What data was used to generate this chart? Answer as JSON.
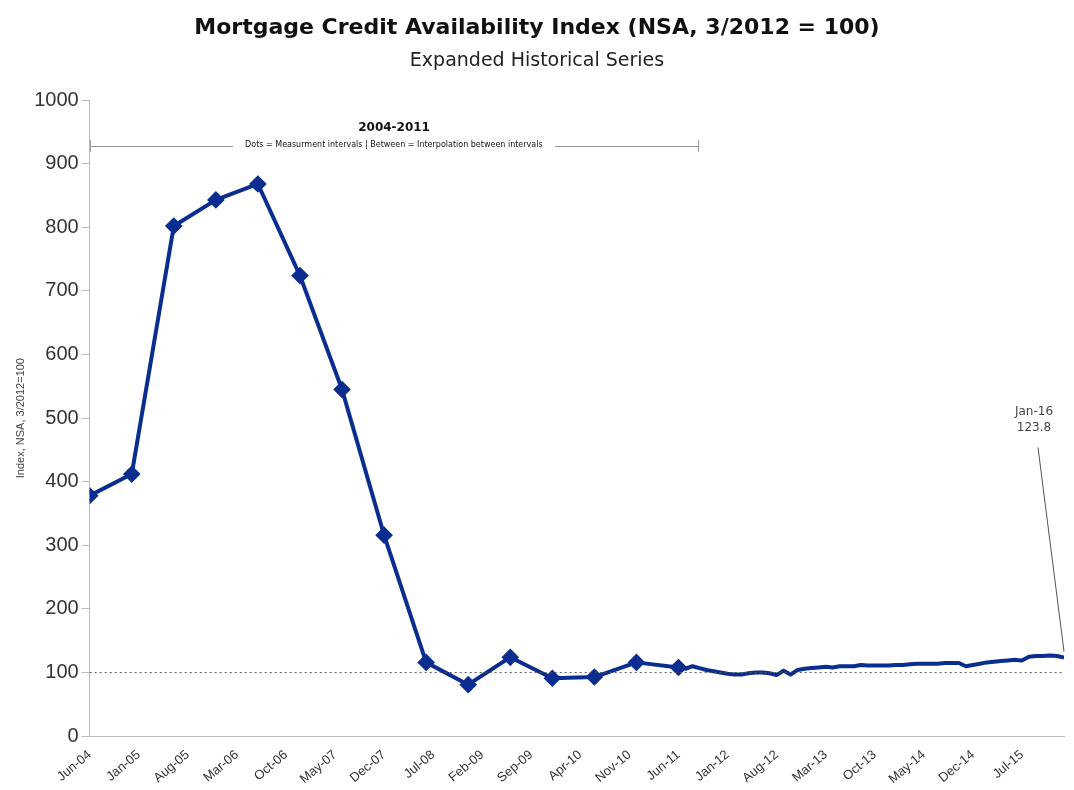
{
  "chart_data": {
    "type": "line",
    "title": "Mortgage Credit Availability Index (NSA, 3/2012 = 100)",
    "subtitle": "Expanded Historical Series",
    "ylabel": "Index, NSA, 3/2012=100",
    "annotations": [
      "2004-2011",
      "Dots = Measurment intervals | Between = Interpolation between intervals",
      {
        "text": "Jan-16\n123.8",
        "x": "2016-01",
        "y": 123.8
      }
    ],
    "series": [
      {
        "color": "#0a2d8f",
        "marker": "diamond",
        "x": [
          "2004-06",
          "2004-12",
          "2005-06",
          "2005-12",
          "2006-06",
          "2006-12",
          "2007-06",
          "2007-12",
          "2008-06",
          "2008-12",
          "2009-06",
          "2009-12",
          "2010-06",
          "2010-12",
          "2011-06"
        ],
        "values": [
          378,
          412,
          802,
          843,
          868,
          724,
          545,
          316,
          116,
          81,
          124,
          91,
          93,
          116,
          108
        ]
      },
      {
        "color": "#0a2d8f",
        "marker": "none",
        "x": [
          "2011-06",
          "2011-07",
          "2011-08",
          "2011-09",
          "2011-10",
          "2011-11",
          "2011-12",
          "2012-01",
          "2012-02",
          "2012-03",
          "2012-04",
          "2012-05",
          "2012-06",
          "2012-07",
          "2012-08",
          "2012-09",
          "2012-10",
          "2012-11",
          "2012-12",
          "2013-01",
          "2013-02",
          "2013-03",
          "2013-04",
          "2013-05",
          "2013-06",
          "2013-07",
          "2013-08",
          "2013-09",
          "2013-10",
          "2013-11",
          "2013-12",
          "2014-01",
          "2014-02",
          "2014-03",
          "2014-04",
          "2014-05",
          "2014-06",
          "2014-07",
          "2014-08",
          "2014-09",
          "2014-10",
          "2014-11",
          "2014-12",
          "2015-01",
          "2015-02",
          "2015-03",
          "2015-04",
          "2015-05",
          "2015-06",
          "2015-07",
          "2015-08",
          "2015-09",
          "2015-10",
          "2015-11",
          "2015-12",
          "2016-01"
        ],
        "values": [
          108,
          106,
          110,
          107,
          104,
          102,
          100,
          98,
          97,
          97,
          99,
          100,
          100,
          99,
          96,
          103,
          97,
          104,
          106,
          107,
          108,
          109,
          108,
          110,
          110,
          110,
          112,
          111,
          111,
          111,
          111,
          112,
          112,
          113,
          114,
          114,
          114,
          114,
          115,
          115,
          115,
          110,
          112,
          114,
          116,
          117,
          118,
          119,
          120,
          119,
          125,
          126,
          126,
          127,
          126,
          123.8
        ]
      }
    ],
    "ref_lines": [
      {
        "axis": "y",
        "value": 100,
        "color": "#555555",
        "line_style": "dotted"
      }
    ],
    "xlim": [
      "2004-06",
      "2016-01"
    ],
    "xticks": [
      {
        "value": "2004-06",
        "label": "Jun-04"
      },
      {
        "value": "2005-01",
        "label": "Jan-05"
      },
      {
        "value": "2005-08",
        "label": "Aug-05"
      },
      {
        "value": "2006-03",
        "label": "Mar-06"
      },
      {
        "value": "2006-10",
        "label": "Oct-06"
      },
      {
        "value": "2007-05",
        "label": "May-07"
      },
      {
        "value": "2007-12",
        "label": "Dec-07"
      },
      {
        "value": "2008-07",
        "label": "Jul-08"
      },
      {
        "value": "2009-02",
        "label": "Feb-09"
      },
      {
        "value": "2009-09",
        "label": "Sep-09"
      },
      {
        "value": "2010-04",
        "label": "Apr-10"
      },
      {
        "value": "2010-11",
        "label": "Nov-10"
      },
      {
        "value": "2011-06",
        "label": "Jun-11"
      },
      {
        "value": "2012-01",
        "label": "Jan-12"
      },
      {
        "value": "2012-08",
        "label": "Aug-12"
      },
      {
        "value": "2013-03",
        "label": "Mar-13"
      },
      {
        "value": "2013-10",
        "label": "Oct-13"
      },
      {
        "value": "2014-05",
        "label": "May-14"
      },
      {
        "value": "2014-12",
        "label": "Dec-14"
      },
      {
        "value": "2015-07",
        "label": "Jul-15"
      }
    ],
    "ylim": [
      0,
      1000
    ],
    "yticks": [
      0,
      100,
      200,
      300,
      400,
      500,
      600,
      700,
      800,
      900,
      1000
    ],
    "grid": false,
    "legend": false
  }
}
